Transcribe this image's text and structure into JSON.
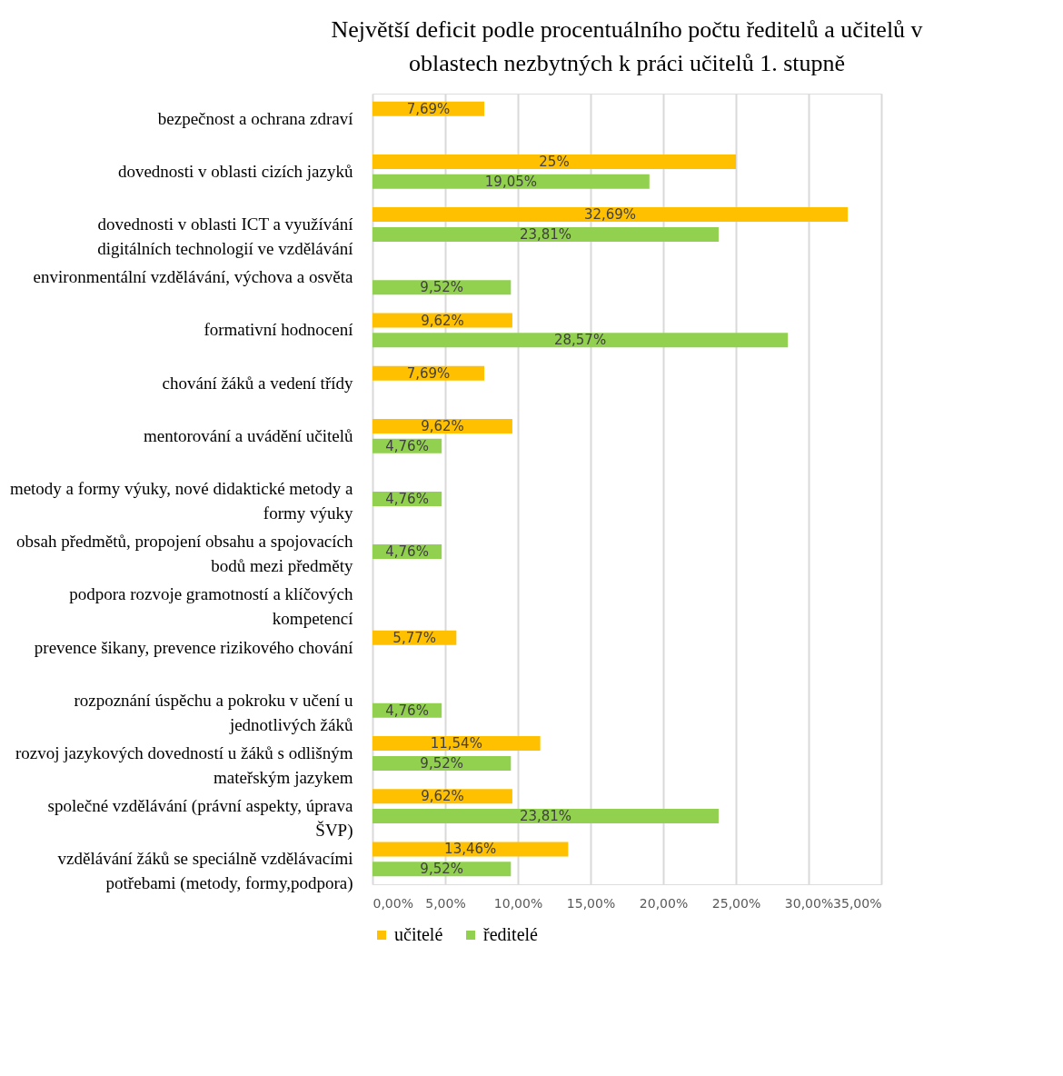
{
  "chart_data": {
    "type": "bar",
    "orientation": "horizontal",
    "title": "Největší deficit podle procentuálního počtu ředitelů a učitelů v oblastech nezbytných k práci učitelů 1. stupně",
    "categories": [
      "bezpečnost a ochrana zdraví",
      "dovednosti v oblasti cizích jazyků",
      "dovednosti v oblasti ICT a využívání digitálních technologií ve vzdělávání",
      "environmentální vzdělávání, výchova a osvěta",
      "formativní hodnocení",
      "chování žáků a vedení třídy",
      "mentorování a uvádění učitelů",
      "metody a formy výuky, nové didaktické metody a formy výuky",
      "obsah předmětů, propojení obsahu a spojovacích bodů mezi předměty",
      "podpora rozvoje gramotností a klíčových kompetencí",
      "prevence šikany, prevence rizikového chování",
      "rozpoznání úspěchu a pokroku v učení u jednotlivých žáků",
      "rozvoj jazykových dovedností u žáků s odlišným mateřským jazykem",
      "společné vzdělávání (právní aspekty, úprava ŠVP)",
      "vzdělávání žáků se speciálně vzdělávacími potřebami (metody, formy,podpora)"
    ],
    "series": [
      {
        "name": "učitelé",
        "color": "#ffc000",
        "values": [
          7.69,
          25,
          32.69,
          null,
          9.62,
          7.69,
          9.62,
          null,
          null,
          null,
          5.77,
          null,
          11.54,
          9.62,
          13.46
        ],
        "value_labels": [
          "7,69%",
          "25%",
          "32,69%",
          null,
          "9,62%",
          "7,69%",
          "9,62%",
          null,
          null,
          null,
          "5,77%",
          null,
          "11,54%",
          "9,62%",
          "13,46%"
        ]
      },
      {
        "name": "ředitelé",
        "color": "#92d050",
        "values": [
          null,
          19.05,
          23.81,
          9.52,
          28.57,
          null,
          4.76,
          4.76,
          4.76,
          null,
          null,
          4.76,
          9.52,
          23.81,
          9.52
        ],
        "value_labels": [
          null,
          "19,05%",
          "23,81%",
          "9,52%",
          "28,57%",
          null,
          "4,76%",
          "4,76%",
          "4,76%",
          null,
          null,
          "4,76%",
          "9,52%",
          "23,81%",
          "9,52%"
        ]
      }
    ],
    "xlim": [
      0,
      35
    ],
    "xticks": [
      {
        "value": 0,
        "label": "0,00%"
      },
      {
        "value": 5,
        "label": "5,00%"
      },
      {
        "value": 10,
        "label": "10,00%"
      },
      {
        "value": 15,
        "label": "15,00%"
      },
      {
        "value": 20,
        "label": "20,00%"
      },
      {
        "value": 25,
        "label": "25,00%"
      },
      {
        "value": 30,
        "label": "30,00%"
      },
      {
        "value": 35,
        "label": "35,00%"
      }
    ],
    "grid": "x",
    "legend": "bottom"
  }
}
